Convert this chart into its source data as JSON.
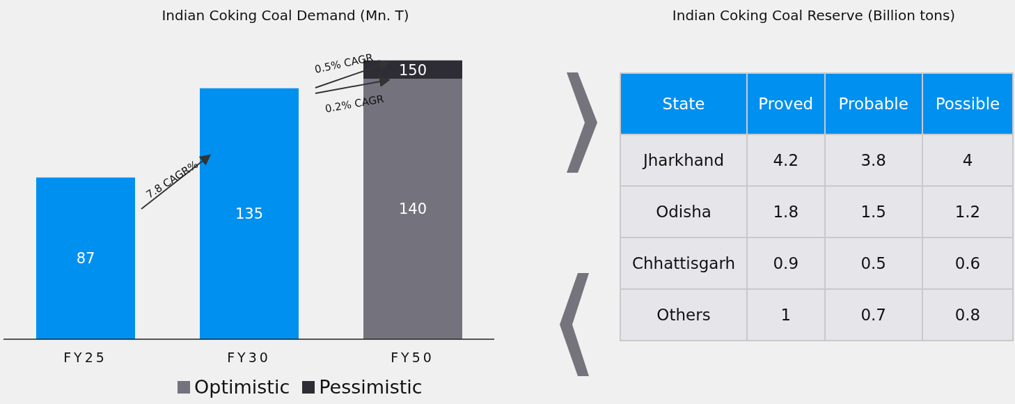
{
  "chart_data": [
    {
      "type": "bar",
      "title": "Indian Coking Coal Demand (Mn. T)",
      "categories": [
        "FY25",
        "FY30",
        "FY50"
      ],
      "stacked": true,
      "legend": "bottom",
      "grid": false,
      "series": [
        {
          "color": "#0090f0",
          "values": [
            87,
            135,
            null
          ],
          "value_labels": [
            "87",
            "135",
            null
          ]
        },
        {
          "name": "Optimistic",
          "color": "#74737d",
          "values": [
            null,
            null,
            140
          ],
          "value_labels": [
            null,
            null,
            "140"
          ]
        },
        {
          "name": "Pessimistic",
          "color": "#2e2d35",
          "values": [
            null,
            null,
            10
          ]
        }
      ],
      "totals": [
        null,
        null,
        "150"
      ],
      "annotations": [
        "7.8 CAGR%",
        "0.5% CAGR",
        "0.2% CAGR"
      ]
    },
    {
      "type": "heatmap",
      "title": "Indian Coking Coal Reserve (Billion tons)",
      "ylabel": "State",
      "categories": [
        "Proved",
        "Probable",
        "Possible"
      ],
      "y_categories": [
        "Jharkhand",
        "Odisha",
        "Chhattisgarh",
        "Others"
      ],
      "data_labels": true,
      "cells": [
        [
          4.2,
          3.8,
          4
        ],
        [
          1.8,
          1.5,
          1.2
        ],
        [
          0.9,
          0.5,
          0.6
        ],
        [
          1,
          0.7,
          0.8
        ]
      ]
    }
  ]
}
